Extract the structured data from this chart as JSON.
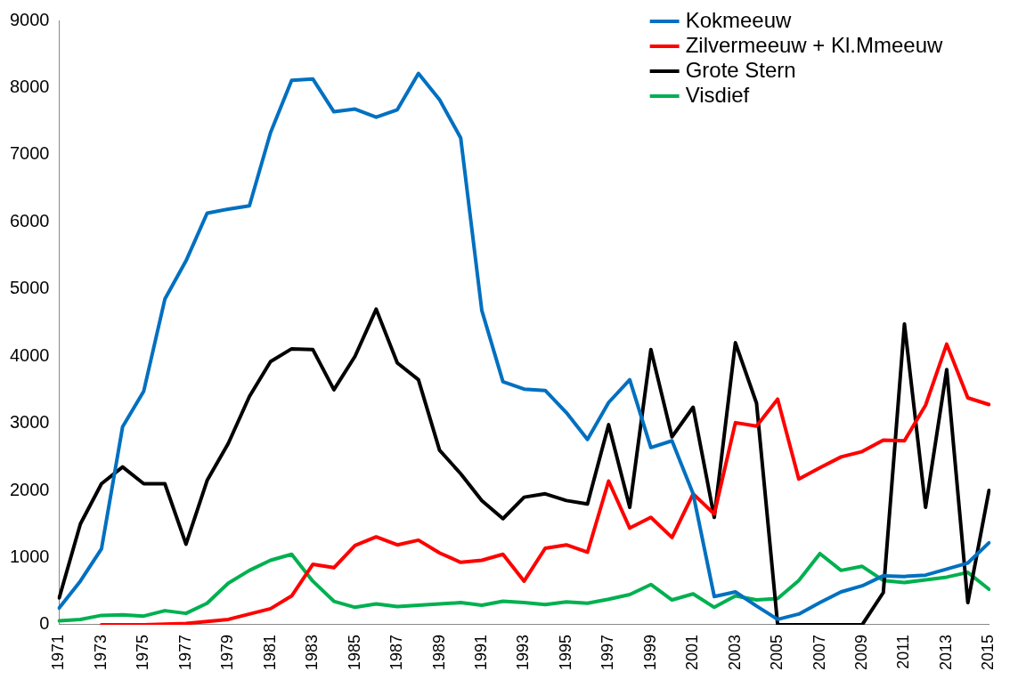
{
  "chart_data": {
    "type": "line",
    "categories": [
      "1971",
      null,
      "1973",
      null,
      "1975",
      null,
      "1977",
      null,
      "1979",
      null,
      "1981",
      null,
      "1983",
      null,
      "1985",
      null,
      "1987",
      null,
      "1989",
      null,
      "1991",
      null,
      "1993",
      null,
      "1995",
      null,
      "1997",
      null,
      "1999",
      null,
      "2001",
      null,
      "2003",
      null,
      "2005",
      null,
      "2007",
      null,
      "2009",
      null,
      "2011",
      null,
      "2013",
      null,
      "2015"
    ],
    "ylim": [
      0,
      9000
    ],
    "yticks": [
      0,
      1000,
      2000,
      3000,
      4000,
      5000,
      6000,
      7000,
      8000,
      9000
    ],
    "grid": false,
    "legend": "top right",
    "marker": "none",
    "line_style": "solid",
    "series": [
      {
        "name": "Kokmeeuw",
        "color": "#0070c0",
        "values": [
          250,
          650,
          1130,
          2950,
          3480,
          4850,
          5420,
          6130,
          6190,
          6240,
          7330,
          8110,
          8130,
          7640,
          7680,
          7560,
          7670,
          8210,
          7820,
          7250,
          4680,
          3620,
          3510,
          3490,
          3160,
          2760,
          3310,
          3650,
          2640,
          2740,
          1950,
          420,
          490,
          280,
          80,
          160,
          330,
          490,
          580,
          730,
          720,
          740,
          830,
          920,
          1220
        ]
      },
      {
        "name": "Zilvermeeuw + Kl.Mmeeuw",
        "color": "#ff0000",
        "values": [
          null,
          null,
          0,
          0,
          0,
          10,
          20,
          50,
          80,
          160,
          240,
          430,
          900,
          850,
          1180,
          1310,
          1190,
          1260,
          1070,
          930,
          960,
          1050,
          650,
          1140,
          1190,
          1080,
          2140,
          1440,
          1600,
          1300,
          1950,
          1650,
          3010,
          2960,
          3360,
          2170,
          2340,
          2500,
          2580,
          2750,
          2740,
          3270,
          4180,
          3380,
          3280
        ]
      },
      {
        "name": "Grote Stern",
        "color": "#000000",
        "values": [
          400,
          1500,
          2100,
          2350,
          2100,
          2100,
          1200,
          2150,
          2700,
          3400,
          3920,
          4110,
          4100,
          3500,
          4000,
          4700,
          3900,
          3650,
          2600,
          2250,
          1850,
          1580,
          1900,
          1950,
          1850,
          1800,
          2980,
          1750,
          4100,
          2800,
          3240,
          1600,
          4200,
          3300,
          0,
          0,
          0,
          0,
          0,
          480,
          4480,
          1750,
          3800,
          330,
          2000
        ]
      },
      {
        "name": "Visdief",
        "color": "#00b050",
        "values": [
          60,
          80,
          140,
          150,
          130,
          210,
          170,
          320,
          620,
          810,
          960,
          1050,
          650,
          350,
          260,
          310,
          270,
          290,
          310,
          330,
          290,
          350,
          330,
          300,
          340,
          320,
          380,
          450,
          600,
          370,
          460,
          260,
          430,
          370,
          390,
          660,
          1060,
          810,
          870,
          660,
          630,
          670,
          710,
          780,
          530
        ]
      }
    ]
  }
}
